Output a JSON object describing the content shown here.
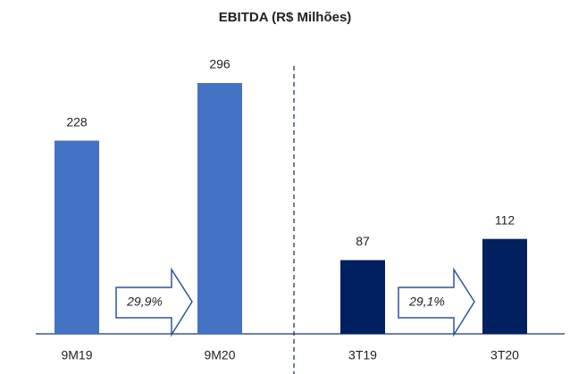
{
  "chart_data": {
    "type": "bar",
    "title": "EBITDA (R$ Milhões)",
    "categories": [
      "9M19",
      "9M20",
      "3T19",
      "3T20"
    ],
    "values": [
      228,
      296,
      87,
      112
    ],
    "colors": [
      "#4472c4",
      "#4472c4",
      "#002060",
      "#002060"
    ],
    "annotations": [
      "29,9%",
      "29,1%"
    ]
  }
}
